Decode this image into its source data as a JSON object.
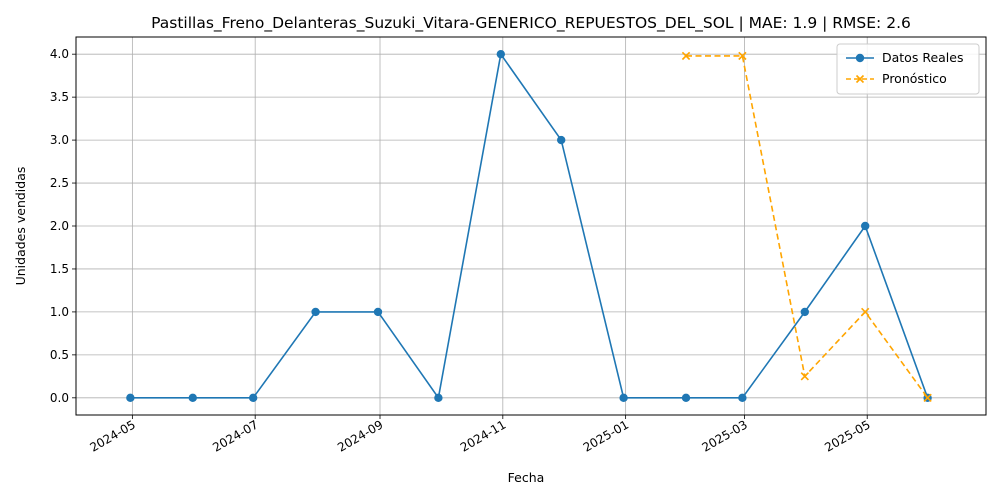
{
  "chart_data": {
    "type": "line",
    "title": "Pastillas_Freno_Delanteras_Suzuki_Vitara-GENERICO_REPUESTOS_DEL_SOL | MAE: 1.9 | RMSE: 2.6",
    "xlabel": "Fecha",
    "ylabel": "Unidades vendidas",
    "x_ticks": [
      "2024-05",
      "2024-07",
      "2024-09",
      "2024-11",
      "2025-01",
      "2025-03",
      "2025-05"
    ],
    "y_ticks": [
      "0.0",
      "0.5",
      "1.0",
      "1.5",
      "2.0",
      "2.5",
      "3.0",
      "3.5",
      "4.0"
    ],
    "xlim": [
      "2024-04-03",
      "2025-06-29"
    ],
    "ylim": [
      -0.2,
      4.2
    ],
    "grid": true,
    "legend_position": "top-right",
    "series": [
      {
        "name": "Datos Reales",
        "color": "#1f77b4",
        "marker": "circle",
        "linestyle": "solid",
        "x": [
          "2024-04-30",
          "2024-05-31",
          "2024-06-30",
          "2024-07-31",
          "2024-08-31",
          "2024-09-30",
          "2024-10-31",
          "2024-11-30",
          "2024-12-31",
          "2025-01-31",
          "2025-02-28",
          "2025-03-31",
          "2025-04-30",
          "2025-05-31"
        ],
        "values": [
          0,
          0,
          0,
          1,
          1,
          0,
          4,
          3,
          0,
          0,
          0,
          1,
          2,
          0
        ]
      },
      {
        "name": "Pronóstico",
        "color": "#ffa500",
        "marker": "x",
        "linestyle": "dashed",
        "x": [
          "2025-01-31",
          "2025-02-28",
          "2025-03-31",
          "2025-04-30",
          "2025-05-31"
        ],
        "values": [
          3.98,
          3.98,
          0.25,
          1.0,
          0.0
        ]
      }
    ]
  }
}
